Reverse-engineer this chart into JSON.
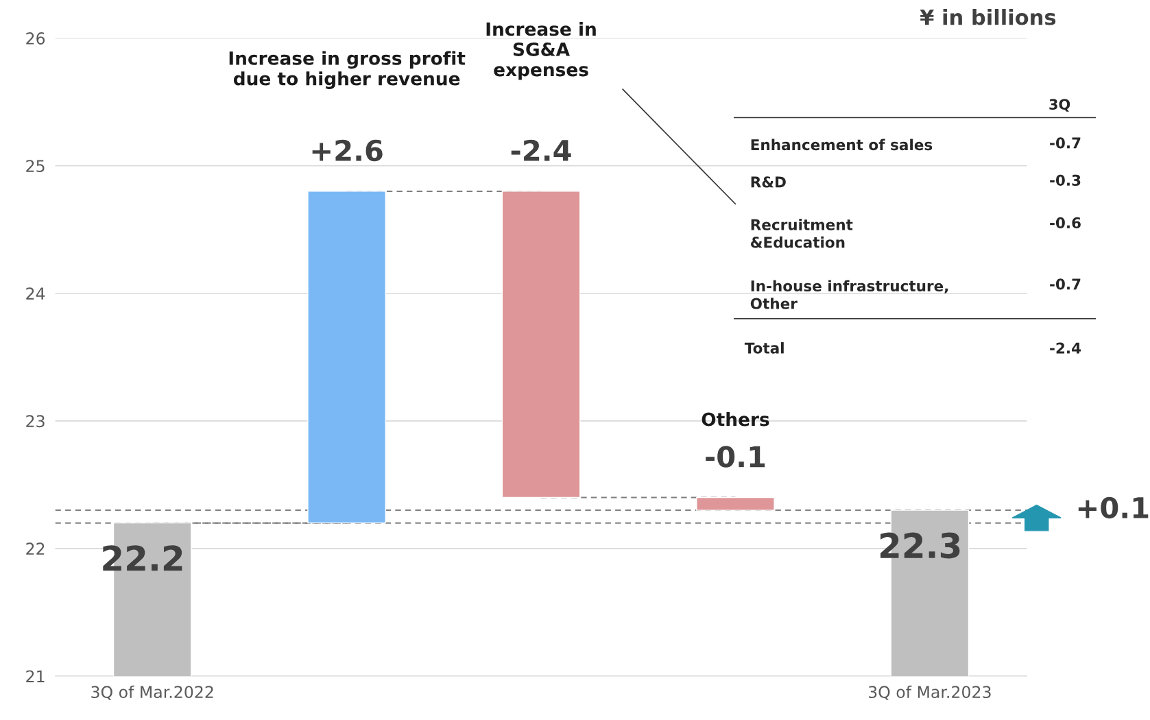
{
  "chart_data": [
    {
      "type": "bar",
      "categories": [
        "3Q of Mar.2022",
        null,
        null,
        null,
        "3Q of Mar.2023"
      ],
      "values": [
        22.2,
        2.6,
        -2.4,
        -0.1,
        22.3
      ],
      "base": [
        null,
        22.2,
        24.8,
        22.4,
        null
      ],
      "colors": [
        "#bfbfbf",
        "#7ab8f5",
        "#de9698",
        "#de9698",
        "#bfbfbf"
      ],
      "value_labels": [
        "22.2",
        "+2.6",
        "-2.4",
        "-0.1",
        "22.3"
      ],
      "ref_lines": [
        {
          "axis": "y",
          "value": 22.2,
          "color": "#7f7f7f",
          "line_style": "dashed"
        },
        {
          "axis": "y",
          "value": 22.3,
          "color": "#7f7f7f",
          "line_style": "dashed"
        }
      ],
      "ylim": [
        21,
        26
      ],
      "yticks": [
        21,
        22,
        23,
        24,
        25,
        26
      ],
      "grid": "y",
      "annotations": [
        "Increase in gross profit\ndue to higher revenue",
        "Increase in\nSG&A\nexpenses",
        "Others",
        "¥ in billions",
        "+0.1"
      ]
    },
    {
      "type": "other",
      "title": "3Q",
      "categories": [
        "Enhancement of sales",
        "R&D",
        "Recruitment\n&Education",
        "In-house infrastructure,\nOther",
        "Total"
      ],
      "values": [
        -0.7,
        -0.3,
        -0.6,
        -0.7,
        -2.4
      ],
      "data_labels": true
    }
  ]
}
